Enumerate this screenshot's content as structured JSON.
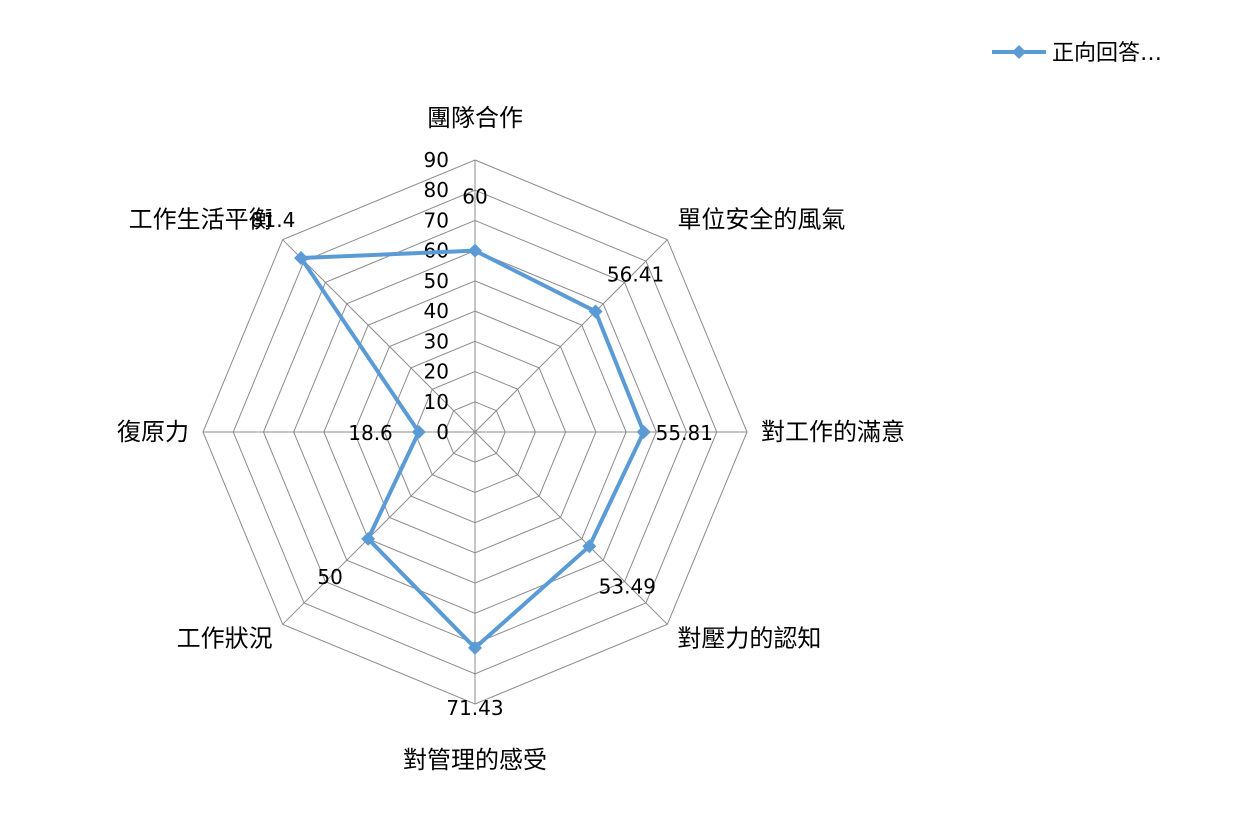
{
  "chart_data": {
    "type": "radar",
    "categories": [
      "團隊合作",
      "單位安全的風氣",
      "對工作的滿意",
      "對壓力的認知",
      "對管理的感受",
      "工作狀況",
      "復原力",
      "工作生活平衡"
    ],
    "series": [
      {
        "name": "正向回答…",
        "values": [
          60,
          56.41,
          55.81,
          53.49,
          71.43,
          50,
          18.6,
          81.4
        ],
        "data_labels": [
          "60",
          "56.41",
          "55.81",
          "53.49",
          "71.43",
          "50",
          "18.6",
          "81.4"
        ],
        "color": "#5b9bd5",
        "marker": "diamond"
      }
    ],
    "r_ticks": [
      "0",
      "10",
      "20",
      "30",
      "40",
      "50",
      "60",
      "70",
      "80",
      "90"
    ],
    "r_range": [
      0,
      90
    ],
    "grid": true,
    "grid_color": "#8c8c8c",
    "legend_position": "top-right"
  }
}
